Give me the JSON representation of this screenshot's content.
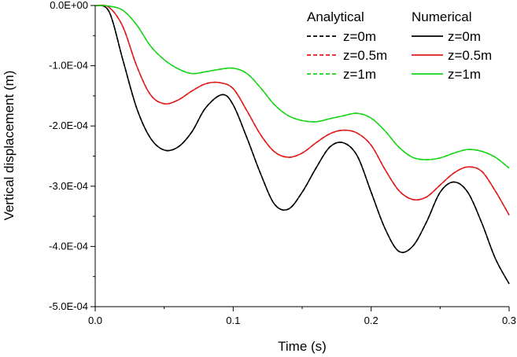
{
  "chart_data": {
    "type": "line",
    "xlabel": "Time (s)",
    "ylabel": "Vertical displacement (m)",
    "xlim": [
      0,
      0.3
    ],
    "ylim": [
      -0.0005,
      0
    ],
    "x_ticks": [
      0,
      0.1,
      0.2,
      0.3
    ],
    "x_tick_labels": [
      "0.0",
      "0.1",
      "0.2",
      "0.3"
    ],
    "y_ticks": [
      0,
      -0.0001,
      -0.0002,
      -0.0003,
      -0.0004,
      -0.0005
    ],
    "y_tick_labels": [
      "0.0E+00",
      "-1.0E-04",
      "-2.0E-04",
      "-3.0E-04",
      "-4.0E-04",
      "-5.0E-04"
    ],
    "grid": false,
    "legend": {
      "placement": "top-right",
      "group_titles": [
        "Analytical",
        "Numerical"
      ]
    },
    "colors": {
      "z0": "#000000",
      "z05": "#e01b1b",
      "z1": "#19d419"
    },
    "series": [
      {
        "name": "z=0m",
        "group": "Analytical",
        "style": "dashed",
        "color_key": "z0",
        "points": [
          [
            0,
            0
          ],
          [
            0.01,
            -1e-05
          ],
          [
            0.02,
            -9e-05
          ],
          [
            0.03,
            -0.00017
          ],
          [
            0.04,
            -0.00022
          ],
          [
            0.05,
            -0.00024
          ],
          [
            0.06,
            -0.000235
          ],
          [
            0.07,
            -0.00021
          ],
          [
            0.08,
            -0.00017
          ],
          [
            0.092,
            -0.000148
          ],
          [
            0.1,
            -0.000165
          ],
          [
            0.11,
            -0.00022
          ],
          [
            0.12,
            -0.00028
          ],
          [
            0.13,
            -0.00033
          ],
          [
            0.14,
            -0.000338
          ],
          [
            0.15,
            -0.00031
          ],
          [
            0.16,
            -0.00027
          ],
          [
            0.17,
            -0.000235
          ],
          [
            0.18,
            -0.000228
          ],
          [
            0.19,
            -0.00025
          ],
          [
            0.2,
            -0.00031
          ],
          [
            0.21,
            -0.00037
          ],
          [
            0.22,
            -0.000408
          ],
          [
            0.23,
            -0.0004
          ],
          [
            0.24,
            -0.00036
          ],
          [
            0.25,
            -0.00031
          ],
          [
            0.26,
            -0.000293
          ],
          [
            0.27,
            -0.00031
          ],
          [
            0.28,
            -0.00036
          ],
          [
            0.29,
            -0.00042
          ],
          [
            0.3,
            -0.000462
          ]
        ]
      },
      {
        "name": "z=0.5m",
        "group": "Analytical",
        "style": "dashed",
        "color_key": "z05",
        "points": [
          [
            0,
            0
          ],
          [
            0.01,
            -3e-06
          ],
          [
            0.02,
            -3.5e-05
          ],
          [
            0.03,
            -0.0001
          ],
          [
            0.04,
            -0.000148
          ],
          [
            0.05,
            -0.000163
          ],
          [
            0.06,
            -0.000157
          ],
          [
            0.07,
            -0.000142
          ],
          [
            0.08,
            -0.00013
          ],
          [
            0.09,
            -0.000128
          ],
          [
            0.1,
            -0.000138
          ],
          [
            0.11,
            -0.000175
          ],
          [
            0.12,
            -0.000215
          ],
          [
            0.13,
            -0.000243
          ],
          [
            0.14,
            -0.000252
          ],
          [
            0.15,
            -0.000245
          ],
          [
            0.16,
            -0.000228
          ],
          [
            0.17,
            -0.000213
          ],
          [
            0.18,
            -0.000207
          ],
          [
            0.19,
            -0.000212
          ],
          [
            0.2,
            -0.000232
          ],
          [
            0.21,
            -0.000272
          ],
          [
            0.22,
            -0.000307
          ],
          [
            0.23,
            -0.000322
          ],
          [
            0.24,
            -0.000318
          ],
          [
            0.25,
            -0.000298
          ],
          [
            0.26,
            -0.000278
          ],
          [
            0.27,
            -0.000268
          ],
          [
            0.28,
            -0.000275
          ],
          [
            0.29,
            -0.000308
          ],
          [
            0.3,
            -0.000348
          ]
        ]
      },
      {
        "name": "z=1m",
        "group": "Analytical",
        "style": "dashed",
        "color_key": "z1",
        "points": [
          [
            0,
            0
          ],
          [
            0.01,
            -1e-06
          ],
          [
            0.02,
            -8e-06
          ],
          [
            0.03,
            -3.2e-05
          ],
          [
            0.04,
            -6.7e-05
          ],
          [
            0.05,
            -9e-05
          ],
          [
            0.06,
            -0.000105
          ],
          [
            0.07,
            -0.000113
          ],
          [
            0.08,
            -0.00011
          ],
          [
            0.09,
            -0.000106
          ],
          [
            0.1,
            -0.000104
          ],
          [
            0.11,
            -0.000113
          ],
          [
            0.12,
            -0.000137
          ],
          [
            0.13,
            -0.000165
          ],
          [
            0.14,
            -0.000183
          ],
          [
            0.15,
            -0.000191
          ],
          [
            0.16,
            -0.000193
          ],
          [
            0.17,
            -0.000188
          ],
          [
            0.18,
            -0.000183
          ],
          [
            0.19,
            -0.000179
          ],
          [
            0.2,
            -0.000187
          ],
          [
            0.21,
            -0.000208
          ],
          [
            0.22,
            -0.000235
          ],
          [
            0.23,
            -0.000252
          ],
          [
            0.24,
            -0.000256
          ],
          [
            0.25,
            -0.000253
          ],
          [
            0.26,
            -0.000245
          ],
          [
            0.27,
            -0.000239
          ],
          [
            0.28,
            -0.000242
          ],
          [
            0.29,
            -0.000252
          ],
          [
            0.3,
            -0.00027
          ]
        ]
      },
      {
        "name": "z=0m",
        "group": "Numerical",
        "style": "solid",
        "color_key": "z0",
        "points": [
          [
            0,
            0
          ],
          [
            0.01,
            -1e-05
          ],
          [
            0.02,
            -9e-05
          ],
          [
            0.03,
            -0.00017
          ],
          [
            0.04,
            -0.00022
          ],
          [
            0.05,
            -0.00024
          ],
          [
            0.06,
            -0.000235
          ],
          [
            0.07,
            -0.00021
          ],
          [
            0.08,
            -0.00017
          ],
          [
            0.092,
            -0.000148
          ],
          [
            0.1,
            -0.000165
          ],
          [
            0.11,
            -0.00022
          ],
          [
            0.12,
            -0.00028
          ],
          [
            0.13,
            -0.00033
          ],
          [
            0.14,
            -0.000338
          ],
          [
            0.15,
            -0.00031
          ],
          [
            0.16,
            -0.00027
          ],
          [
            0.17,
            -0.000235
          ],
          [
            0.18,
            -0.000228
          ],
          [
            0.19,
            -0.00025
          ],
          [
            0.2,
            -0.00031
          ],
          [
            0.21,
            -0.00037
          ],
          [
            0.22,
            -0.000408
          ],
          [
            0.23,
            -0.0004
          ],
          [
            0.24,
            -0.00036
          ],
          [
            0.25,
            -0.00031
          ],
          [
            0.26,
            -0.000293
          ],
          [
            0.27,
            -0.00031
          ],
          [
            0.28,
            -0.00036
          ],
          [
            0.29,
            -0.00042
          ],
          [
            0.3,
            -0.000462
          ]
        ]
      },
      {
        "name": "z=0.5m",
        "group": "Numerical",
        "style": "solid",
        "color_key": "z05",
        "points": [
          [
            0,
            0
          ],
          [
            0.01,
            -3e-06
          ],
          [
            0.02,
            -3.5e-05
          ],
          [
            0.03,
            -0.0001
          ],
          [
            0.04,
            -0.000148
          ],
          [
            0.05,
            -0.000163
          ],
          [
            0.06,
            -0.000157
          ],
          [
            0.07,
            -0.000142
          ],
          [
            0.08,
            -0.00013
          ],
          [
            0.09,
            -0.000128
          ],
          [
            0.1,
            -0.000138
          ],
          [
            0.11,
            -0.000175
          ],
          [
            0.12,
            -0.000215
          ],
          [
            0.13,
            -0.000243
          ],
          [
            0.14,
            -0.000252
          ],
          [
            0.15,
            -0.000245
          ],
          [
            0.16,
            -0.000228
          ],
          [
            0.17,
            -0.000213
          ],
          [
            0.18,
            -0.000207
          ],
          [
            0.19,
            -0.000212
          ],
          [
            0.2,
            -0.000232
          ],
          [
            0.21,
            -0.000272
          ],
          [
            0.22,
            -0.000307
          ],
          [
            0.23,
            -0.000322
          ],
          [
            0.24,
            -0.000318
          ],
          [
            0.25,
            -0.000298
          ],
          [
            0.26,
            -0.000278
          ],
          [
            0.27,
            -0.000268
          ],
          [
            0.28,
            -0.000275
          ],
          [
            0.29,
            -0.000308
          ],
          [
            0.3,
            -0.000348
          ]
        ]
      },
      {
        "name": "z=1m",
        "group": "Numerical",
        "style": "solid",
        "color_key": "z1",
        "points": [
          [
            0,
            0
          ],
          [
            0.01,
            -1e-06
          ],
          [
            0.02,
            -8e-06
          ],
          [
            0.03,
            -3.2e-05
          ],
          [
            0.04,
            -6.7e-05
          ],
          [
            0.05,
            -9e-05
          ],
          [
            0.06,
            -0.000105
          ],
          [
            0.07,
            -0.000113
          ],
          [
            0.08,
            -0.00011
          ],
          [
            0.09,
            -0.000106
          ],
          [
            0.1,
            -0.000104
          ],
          [
            0.11,
            -0.000113
          ],
          [
            0.12,
            -0.000137
          ],
          [
            0.13,
            -0.000165
          ],
          [
            0.14,
            -0.000183
          ],
          [
            0.15,
            -0.000191
          ],
          [
            0.16,
            -0.000193
          ],
          [
            0.17,
            -0.000188
          ],
          [
            0.18,
            -0.000183
          ],
          [
            0.19,
            -0.000179
          ],
          [
            0.2,
            -0.000187
          ],
          [
            0.21,
            -0.000208
          ],
          [
            0.22,
            -0.000235
          ],
          [
            0.23,
            -0.000252
          ],
          [
            0.24,
            -0.000256
          ],
          [
            0.25,
            -0.000253
          ],
          [
            0.26,
            -0.000245
          ],
          [
            0.27,
            -0.000239
          ],
          [
            0.28,
            -0.000242
          ],
          [
            0.29,
            -0.000252
          ],
          [
            0.3,
            -0.00027
          ]
        ]
      }
    ]
  }
}
